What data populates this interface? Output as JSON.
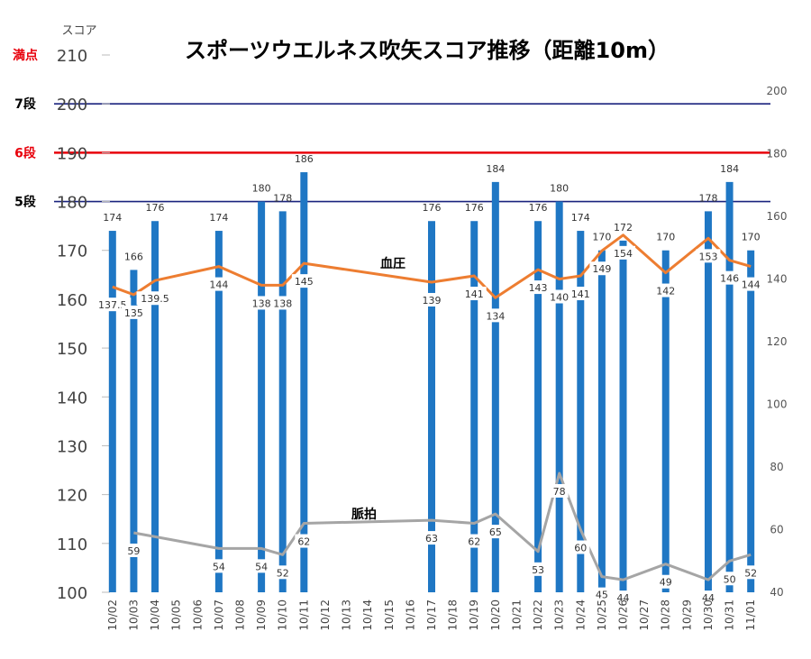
{
  "chart_data": {
    "type": "bar",
    "title": "スポーツウエルネス吹矢スコア推移（距離10m）",
    "y_unit_label": "スコア",
    "ylim": [
      100,
      210
    ],
    "y_ticks": [
      100,
      110,
      120,
      130,
      140,
      150,
      160,
      170,
      180,
      190,
      200,
      210
    ],
    "y_right_lim": [
      40,
      200
    ],
    "y_right_ticks": [
      40,
      60,
      80,
      100,
      120,
      140,
      160,
      180,
      200
    ],
    "grid": false,
    "categories": [
      "10/02",
      "10/03",
      "10/04",
      "10/05",
      "10/06",
      "10/07",
      "10/08",
      "10/09",
      "10/10",
      "10/11",
      "10/12",
      "10/13",
      "10/14",
      "10/15",
      "10/16",
      "10/17",
      "10/18",
      "10/19",
      "10/20",
      "10/21",
      "10/22",
      "10/23",
      "10/24",
      "10/25",
      "10/26",
      "10/27",
      "10/28",
      "10/29",
      "10/30",
      "10/31",
      "11/01"
    ],
    "score": {
      "color": "#1f77c4",
      "values": [
        174,
        166,
        176,
        null,
        null,
        174,
        null,
        180,
        178,
        186,
        null,
        null,
        null,
        null,
        null,
        176,
        null,
        176,
        184,
        null,
        176,
        180,
        174,
        170,
        172,
        null,
        170,
        null,
        178,
        184,
        170
      ]
    },
    "blood_pressure": {
      "name": "血圧",
      "color": "#ed7d31",
      "values": [
        137.5,
        135,
        139.5,
        null,
        null,
        144,
        null,
        138,
        138,
        145,
        null,
        null,
        null,
        null,
        null,
        139,
        null,
        141,
        134,
        null,
        143,
        140,
        141,
        149,
        154,
        null,
        142,
        null,
        153,
        146,
        144
      ],
      "labels": [
        "137.5",
        "135",
        "139.5",
        null,
        null,
        "144",
        null,
        "138",
        "138",
        "145",
        null,
        null,
        null,
        null,
        null,
        "139",
        null,
        "141",
        "134",
        null,
        "143",
        "140",
        "141",
        "149",
        "154",
        null,
        "142",
        null,
        "153",
        "146",
        "144"
      ]
    },
    "pulse": {
      "name": "脈拍",
      "color": "#a5a5a5",
      "values": [
        null,
        59,
        null,
        null,
        null,
        54,
        null,
        54,
        52,
        62,
        null,
        null,
        null,
        null,
        null,
        63,
        null,
        62,
        65,
        null,
        53,
        78,
        60,
        45,
        44,
        null,
        49,
        null,
        44,
        50,
        52
      ]
    },
    "reference_lines": [
      {
        "label": "満点",
        "value": 210,
        "color": "#e8000b"
      },
      {
        "label": "7段",
        "value": 200,
        "color": "#1a237e"
      },
      {
        "label": "6段",
        "value": 190,
        "color": "#e8000b"
      },
      {
        "label": "5段",
        "value": 180,
        "color": "#1a237e"
      }
    ]
  }
}
